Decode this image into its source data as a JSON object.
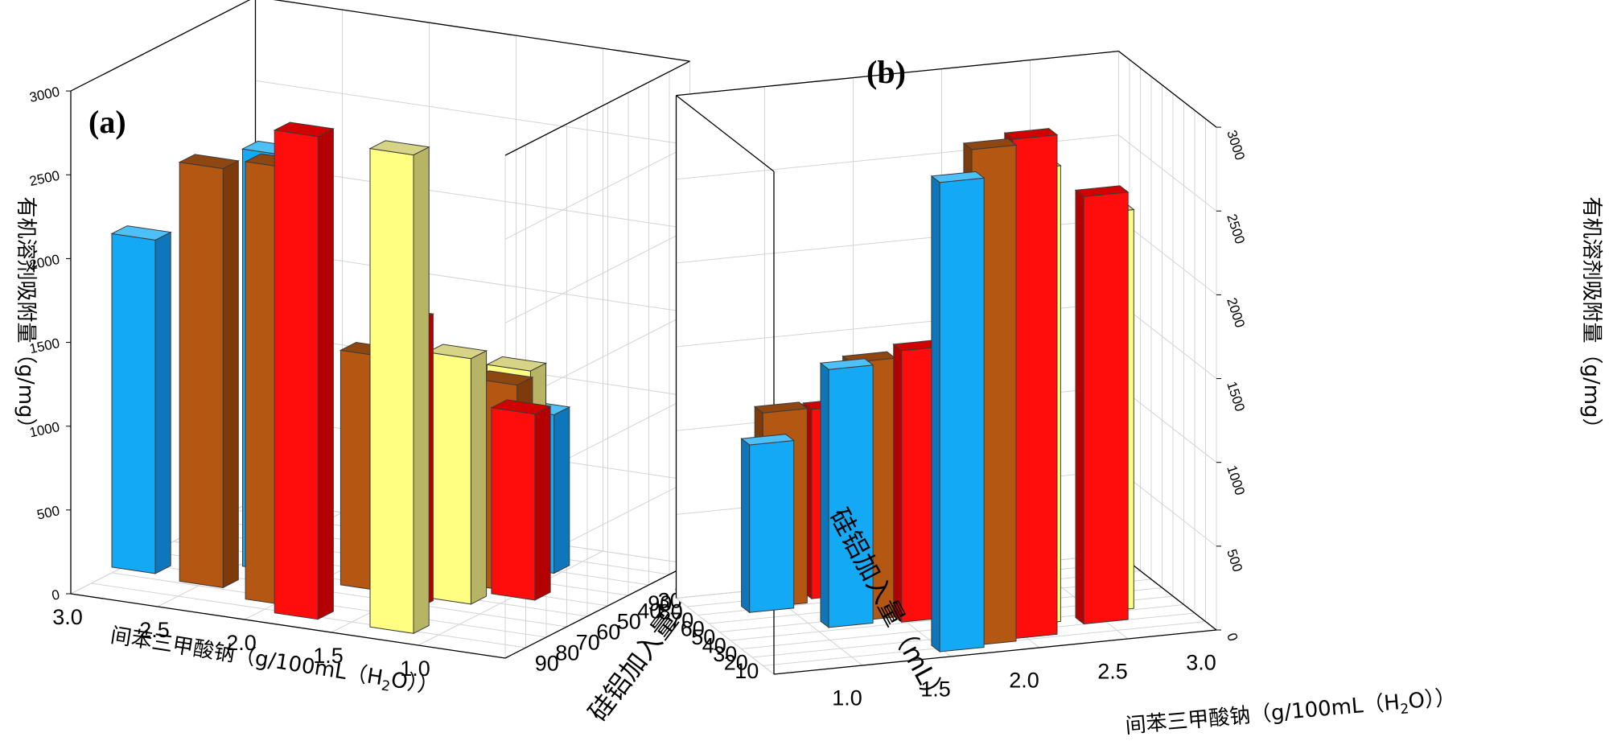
{
  "colors": {
    "blue": {
      "front": "#14a9f5",
      "side": "#0e76bb",
      "top": "#4ec0f8"
    },
    "orange": {
      "front": "#b45712",
      "side": "#7d3b0b",
      "top": "#8e4710"
    },
    "red": {
      "front": "#ff0d0d",
      "side": "#b40000",
      "top": "#d30000"
    },
    "yellow": {
      "front": "#ffff82",
      "side": "#b7b465",
      "top": "#d8d487"
    }
  },
  "chart_data": [
    {
      "type": "bar",
      "panel": "(a)",
      "ylabel": "有机溶剂吸附量（g/mg）",
      "xlabel": "间苯三甲酸钠（g/100mL（H2O））",
      "xlabel_parts": {
        "main": "间苯三甲酸钠（g/100mL（H",
        "sub": "2",
        "end": "O））"
      },
      "zlabel": "硅铝加入量（mL）",
      "zlim": [
        0,
        3000
      ],
      "z_ticks": [
        "0",
        "500",
        "1000",
        "1500",
        "2000",
        "2500",
        "3000"
      ],
      "width_ticks": [
        "3.0",
        "2.5",
        "2.0",
        "1.5",
        "1.0"
      ],
      "depth_ticks": [
        "10",
        "20",
        "30",
        "40",
        "50",
        "60",
        "70",
        "80",
        "90"
      ],
      "bars": [
        {
          "color": "yellow",
          "w": 3.5,
          "d": 1.2,
          "value": 2855
        },
        {
          "color": "red",
          "w": 2.4,
          "d": 1.2,
          "value": 2880
        },
        {
          "color": "yellow",
          "w": 3.5,
          "d": 4.0,
          "value": 1465
        },
        {
          "color": "yellow",
          "w": 3.5,
          "d": 6.9,
          "value": 1210
        },
        {
          "color": "orange",
          "w": 1.9,
          "d": 1.9,
          "value": 2610
        },
        {
          "color": "red",
          "w": 3.1,
          "d": 3.1,
          "value": 1710
        },
        {
          "color": "red",
          "w": 2.7,
          "d": 5.3,
          "value": 1270
        },
        {
          "color": "red",
          "w": 4.0,
          "d": 5.0,
          "value": 1110
        },
        {
          "color": "orange",
          "w": 1.0,
          "d": 2.5,
          "value": 2500
        },
        {
          "color": "orange",
          "w": 2.5,
          "d": 4.0,
          "value": 1400
        },
        {
          "color": "orange",
          "w": 3.7,
          "d": 5.4,
          "value": 1235
        },
        {
          "color": "blue",
          "w": 0.15,
          "d": 2.8,
          "value": 1990
        },
        {
          "color": "blue",
          "w": 1.3,
          "d": 4.3,
          "value": 2490
        },
        {
          "color": "blue",
          "w": 2.5,
          "d": 5.8,
          "value": 1160
        },
        {
          "color": "blue",
          "w": 3.7,
          "d": 7.2,
          "value": 945
        }
      ]
    },
    {
      "type": "bar",
      "panel": "(b)",
      "ylabel": "有机溶剂吸附量（g/mg）",
      "xlabel": "间苯三甲酸钠（g/100mL（H2O））",
      "xlabel_parts": {
        "main": "间苯三甲酸钠（g/100mL（H",
        "sub": "2",
        "end": "O））"
      },
      "zlabel": "硅铝加入量（mL）",
      "zlim": [
        0,
        3000
      ],
      "z_ticks": [
        "0",
        "500",
        "1000",
        "1500",
        "2000",
        "2500",
        "3000"
      ],
      "width_ticks": [
        "1.0",
        "1.5",
        "2.0",
        "2.5",
        "3.0"
      ],
      "depth_ticks": [
        "10",
        "20",
        "30",
        "40",
        "50",
        "60",
        "70",
        "80",
        "90"
      ],
      "bars": [
        {
          "color": "blue",
          "w": 2.2,
          "d": 1.0,
          "value": 2800
        },
        {
          "color": "orange",
          "w": 2.6,
          "d": 1.3,
          "value": 2960
        },
        {
          "color": "red",
          "w": 3.1,
          "d": 1.6,
          "value": 2980
        },
        {
          "color": "red",
          "w": 4.0,
          "d": 2.4,
          "value": 2550
        },
        {
          "color": "blue",
          "w": 1.4,
          "d": 4.7,
          "value": 1540
        },
        {
          "color": "orange",
          "w": 1.7,
          "d": 5.1,
          "value": 1545
        },
        {
          "color": "blue",
          "w": 0.8,
          "d": 7.1,
          "value": 1000
        },
        {
          "color": "orange",
          "w": 1.0,
          "d": 7.5,
          "value": 1160
        },
        {
          "color": "red",
          "w": 2.2,
          "d": 4.5,
          "value": 1620
        },
        {
          "color": "red",
          "w": 1.6,
          "d": 7.9,
          "value": 1130
        },
        {
          "color": "yellow",
          "w": 3.3,
          "d": 2.9,
          "value": 2720
        },
        {
          "color": "yellow",
          "w": 4.2,
          "d": 3.5,
          "value": 2380
        },
        {
          "color": "yellow",
          "w": 2.6,
          "d": 5.3,
          "value": 1405
        },
        {
          "color": "yellow",
          "w": 1.6,
          "d": 8.6,
          "value": 1085
        }
      ]
    }
  ]
}
